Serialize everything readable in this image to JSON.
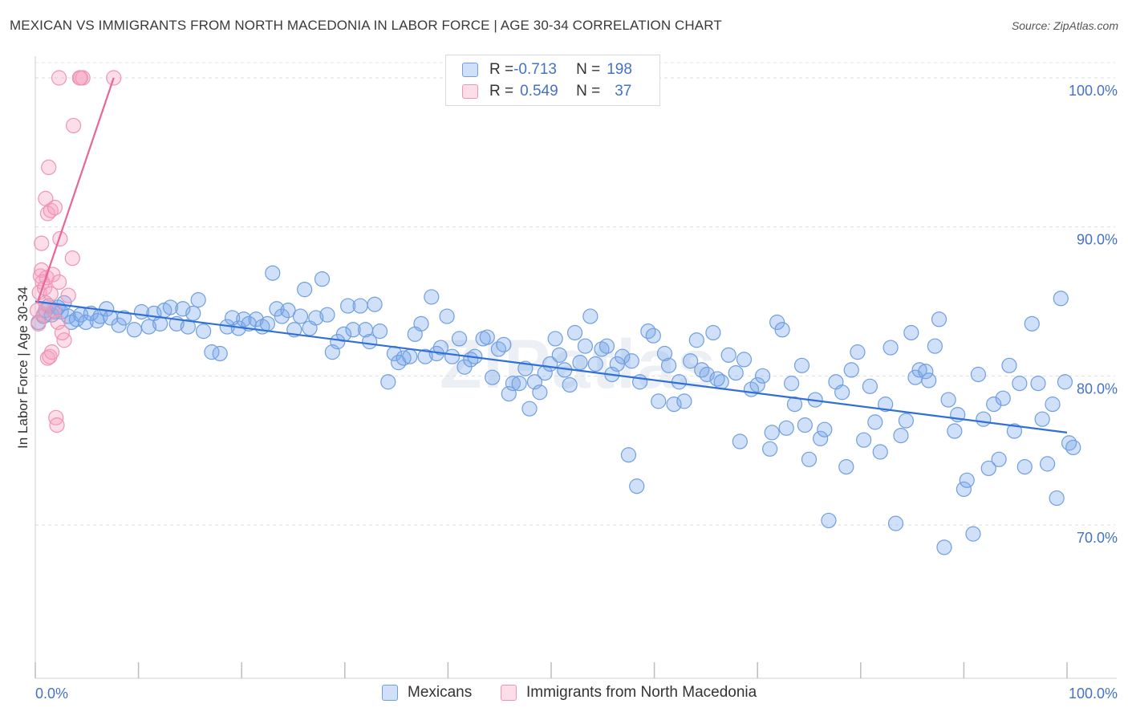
{
  "title": "MEXICAN VS IMMIGRANTS FROM NORTH MACEDONIA IN LABOR FORCE | AGE 30-34 CORRELATION CHART",
  "source": "Source: ZipAtlas.com",
  "watermark": "ZIPatlas",
  "colors": {
    "blue_fill": "rgba(120,165,235,0.35)",
    "blue_stroke": "#6f9fe0",
    "blue_line": "#2f6fd6",
    "pink_fill": "rgba(245,160,190,0.35)",
    "pink_stroke": "#ef94b4",
    "pink_line": "#e8659a",
    "tick_blue": "#4472c4"
  },
  "legend": {
    "rows": [
      {
        "r_label": "R = ",
        "r_value": "-0.713",
        "n_label": "N = ",
        "n_value": "198"
      },
      {
        "r_label": "R = ",
        "r_value": "0.549",
        "n_label": "N = ",
        "n_value": "37"
      }
    ]
  },
  "bottom_legend": {
    "mexicans": "Mexicans",
    "macedonia": "Immigrants from North Macedonia"
  },
  "chart_data": {
    "type": "scatter",
    "title": "MEXICAN VS IMMIGRANTS FROM NORTH MACEDONIA IN LABOR FORCE | AGE 30-34 CORRELATION CHART",
    "xlabel": "",
    "ylabel": "In Labor Force | Age 30-34",
    "xlim": [
      0,
      100
    ],
    "ylim": [
      60,
      101
    ],
    "x_tick_labels": [
      "0.0%",
      "100.0%"
    ],
    "y_ticks": [
      70,
      80,
      90,
      100
    ],
    "y_tick_labels": [
      "70.0%",
      "80.0%",
      "90.0%",
      "100.0%"
    ],
    "grid": true,
    "series": [
      {
        "name": "Mexicans",
        "R": -0.713,
        "N": 198,
        "trend": [
          [
            0.0,
            85.0
          ],
          [
            100.0,
            76.2
          ]
        ],
        "points": [
          [
            0.3,
            83.6
          ],
          [
            0.8,
            84.0
          ],
          [
            1.0,
            84.4
          ],
          [
            1.3,
            84.7
          ],
          [
            1.6,
            84.1
          ],
          [
            1.9,
            84.3
          ],
          [
            2.2,
            84.6
          ],
          [
            2.5,
            84.3
          ],
          [
            2.8,
            84.9
          ],
          [
            3.2,
            84.0
          ],
          [
            3.5,
            83.6
          ],
          [
            4.0,
            83.8
          ],
          [
            4.4,
            84.1
          ],
          [
            4.9,
            83.6
          ],
          [
            5.4,
            84.2
          ],
          [
            6.0,
            83.7
          ],
          [
            6.3,
            84.0
          ],
          [
            6.9,
            84.5
          ],
          [
            7.3,
            83.9
          ],
          [
            8.1,
            83.4
          ],
          [
            8.6,
            83.9
          ],
          [
            9.6,
            83.1
          ],
          [
            10.3,
            84.3
          ],
          [
            11.0,
            83.3
          ],
          [
            11.5,
            84.2
          ],
          [
            12.1,
            83.5
          ],
          [
            12.5,
            84.4
          ],
          [
            13.1,
            84.6
          ],
          [
            13.7,
            83.5
          ],
          [
            14.3,
            84.5
          ],
          [
            14.8,
            83.3
          ],
          [
            15.3,
            84.2
          ],
          [
            15.8,
            85.1
          ],
          [
            16.3,
            83.0
          ],
          [
            17.1,
            81.6
          ],
          [
            17.9,
            81.5
          ],
          [
            18.6,
            83.3
          ],
          [
            19.1,
            83.9
          ],
          [
            19.7,
            83.2
          ],
          [
            20.2,
            83.8
          ],
          [
            20.7,
            83.5
          ],
          [
            21.4,
            83.8
          ],
          [
            22.0,
            83.3
          ],
          [
            22.5,
            83.5
          ],
          [
            23.0,
            86.9
          ],
          [
            23.4,
            84.5
          ],
          [
            23.9,
            84.0
          ],
          [
            24.5,
            84.4
          ],
          [
            25.1,
            83.1
          ],
          [
            25.7,
            84.0
          ],
          [
            26.1,
            85.8
          ],
          [
            26.6,
            83.2
          ],
          [
            27.2,
            83.9
          ],
          [
            27.8,
            86.5
          ],
          [
            28.3,
            84.1
          ],
          [
            28.8,
            81.6
          ],
          [
            29.3,
            82.3
          ],
          [
            29.9,
            82.8
          ],
          [
            30.3,
            84.7
          ],
          [
            30.8,
            83.1
          ],
          [
            31.5,
            84.7
          ],
          [
            32.0,
            83.1
          ],
          [
            32.4,
            82.3
          ],
          [
            32.9,
            84.8
          ],
          [
            33.4,
            83.0
          ],
          [
            34.2,
            79.6
          ],
          [
            34.8,
            81.5
          ],
          [
            35.2,
            80.9
          ],
          [
            35.7,
            81.2
          ],
          [
            36.3,
            81.3
          ],
          [
            36.8,
            82.8
          ],
          [
            37.4,
            83.5
          ],
          [
            37.8,
            81.3
          ],
          [
            38.4,
            85.3
          ],
          [
            38.9,
            81.5
          ],
          [
            39.3,
            81.9
          ],
          [
            39.9,
            84.0
          ],
          [
            40.4,
            81.3
          ],
          [
            41.1,
            82.5
          ],
          [
            41.6,
            80.6
          ],
          [
            42.2,
            81.1
          ],
          [
            42.6,
            81.3
          ],
          [
            43.4,
            82.5
          ],
          [
            43.8,
            82.6
          ],
          [
            44.3,
            79.9
          ],
          [
            44.9,
            81.8
          ],
          [
            45.4,
            82.1
          ],
          [
            45.9,
            78.8
          ],
          [
            46.3,
            79.5
          ],
          [
            46.9,
            79.5
          ],
          [
            47.5,
            80.5
          ],
          [
            47.9,
            77.8
          ],
          [
            48.4,
            79.6
          ],
          [
            48.9,
            78.9
          ],
          [
            49.4,
            80.2
          ],
          [
            49.9,
            80.8
          ],
          [
            50.4,
            82.5
          ],
          [
            50.8,
            81.4
          ],
          [
            51.3,
            80.4
          ],
          [
            51.8,
            79.4
          ],
          [
            52.3,
            82.9
          ],
          [
            52.8,
            80.9
          ],
          [
            53.3,
            82.0
          ],
          [
            53.8,
            84.0
          ],
          [
            54.3,
            80.8
          ],
          [
            54.9,
            81.8
          ],
          [
            55.4,
            82.0
          ],
          [
            55.9,
            80.1
          ],
          [
            56.4,
            80.8
          ],
          [
            56.9,
            81.3
          ],
          [
            57.5,
            74.7
          ],
          [
            57.8,
            81.0
          ],
          [
            58.3,
            72.6
          ],
          [
            58.6,
            79.6
          ],
          [
            59.4,
            83.0
          ],
          [
            59.9,
            82.7
          ],
          [
            60.4,
            78.3
          ],
          [
            61.0,
            81.5
          ],
          [
            61.4,
            80.7
          ],
          [
            61.9,
            78.1
          ],
          [
            62.4,
            79.6
          ],
          [
            62.9,
            78.3
          ],
          [
            63.5,
            81.0
          ],
          [
            64.1,
            82.4
          ],
          [
            64.6,
            80.4
          ],
          [
            65.1,
            80.1
          ],
          [
            65.7,
            82.9
          ],
          [
            66.1,
            79.8
          ],
          [
            66.5,
            79.6
          ],
          [
            67.2,
            81.4
          ],
          [
            67.9,
            80.2
          ],
          [
            68.3,
            75.6
          ],
          [
            68.7,
            81.1
          ],
          [
            69.4,
            79.1
          ],
          [
            70.0,
            79.4
          ],
          [
            70.5,
            80.0
          ],
          [
            71.2,
            75.1
          ],
          [
            71.4,
            76.2
          ],
          [
            71.9,
            83.6
          ],
          [
            72.4,
            83.1
          ],
          [
            72.8,
            76.5
          ],
          [
            73.3,
            79.5
          ],
          [
            73.6,
            78.1
          ],
          [
            74.3,
            80.7
          ],
          [
            74.6,
            76.7
          ],
          [
            75.0,
            74.4
          ],
          [
            75.6,
            78.4
          ],
          [
            76.1,
            75.8
          ],
          [
            76.5,
            76.4
          ],
          [
            76.9,
            70.3
          ],
          [
            77.6,
            79.6
          ],
          [
            78.2,
            78.9
          ],
          [
            78.6,
            73.9
          ],
          [
            79.1,
            80.4
          ],
          [
            79.7,
            81.6
          ],
          [
            80.3,
            75.7
          ],
          [
            80.9,
            79.3
          ],
          [
            81.4,
            76.9
          ],
          [
            81.9,
            74.9
          ],
          [
            82.4,
            78.1
          ],
          [
            82.9,
            81.9
          ],
          [
            83.4,
            70.1
          ],
          [
            83.9,
            76.0
          ],
          [
            84.4,
            77.0
          ],
          [
            84.9,
            82.9
          ],
          [
            85.3,
            79.9
          ],
          [
            85.7,
            80.4
          ],
          [
            86.3,
            80.3
          ],
          [
            86.6,
            79.7
          ],
          [
            87.2,
            82.0
          ],
          [
            87.6,
            83.8
          ],
          [
            88.1,
            68.5
          ],
          [
            88.5,
            78.4
          ],
          [
            89.1,
            76.3
          ],
          [
            89.4,
            77.4
          ],
          [
            90.0,
            72.4
          ],
          [
            90.3,
            73.0
          ],
          [
            90.9,
            69.4
          ],
          [
            91.4,
            80.1
          ],
          [
            91.9,
            77.1
          ],
          [
            92.4,
            73.8
          ],
          [
            92.9,
            78.1
          ],
          [
            93.4,
            74.4
          ],
          [
            93.8,
            78.5
          ],
          [
            94.4,
            80.7
          ],
          [
            94.9,
            76.3
          ],
          [
            95.4,
            79.5
          ],
          [
            95.9,
            73.9
          ],
          [
            96.6,
            83.5
          ],
          [
            97.2,
            79.5
          ],
          [
            97.6,
            77.1
          ],
          [
            98.1,
            74.1
          ],
          [
            98.6,
            78.1
          ],
          [
            99.0,
            71.8
          ],
          [
            99.4,
            85.2
          ],
          [
            99.8,
            79.6
          ],
          [
            100.2,
            75.5
          ],
          [
            100.6,
            75.2
          ]
        ]
      },
      {
        "name": "Immigrants from North Macedonia",
        "R": 0.549,
        "N": 37,
        "trend": [
          [
            0.2,
            84.9
          ],
          [
            7.6,
            100.0
          ]
        ],
        "points": [
          [
            0.2,
            84.4
          ],
          [
            0.3,
            83.5
          ],
          [
            0.4,
            85.6
          ],
          [
            0.5,
            86.7
          ],
          [
            0.6,
            87.1
          ],
          [
            0.6,
            88.9
          ],
          [
            0.7,
            86.3
          ],
          [
            0.8,
            84.1
          ],
          [
            0.9,
            85.9
          ],
          [
            1.0,
            91.9
          ],
          [
            1.0,
            84.9
          ],
          [
            1.1,
            86.6
          ],
          [
            1.2,
            81.2
          ],
          [
            1.2,
            90.9
          ],
          [
            1.3,
            94.0
          ],
          [
            1.4,
            81.3
          ],
          [
            1.5,
            91.1
          ],
          [
            1.6,
            81.6
          ],
          [
            1.7,
            86.8
          ],
          [
            1.8,
            84.4
          ],
          [
            1.9,
            91.3
          ],
          [
            2.0,
            77.2
          ],
          [
            2.1,
            76.7
          ],
          [
            2.2,
            83.6
          ],
          [
            2.3,
            86.3
          ],
          [
            2.4,
            89.2
          ],
          [
            2.8,
            82.4
          ],
          [
            3.2,
            85.4
          ],
          [
            3.6,
            87.9
          ],
          [
            3.7,
            96.8
          ],
          [
            2.3,
            100.0
          ],
          [
            4.3,
            100.0
          ],
          [
            4.4,
            100.0
          ],
          [
            4.6,
            100.0
          ],
          [
            7.6,
            100.0
          ],
          [
            2.6,
            82.9
          ],
          [
            1.5,
            85.5
          ]
        ]
      }
    ]
  }
}
